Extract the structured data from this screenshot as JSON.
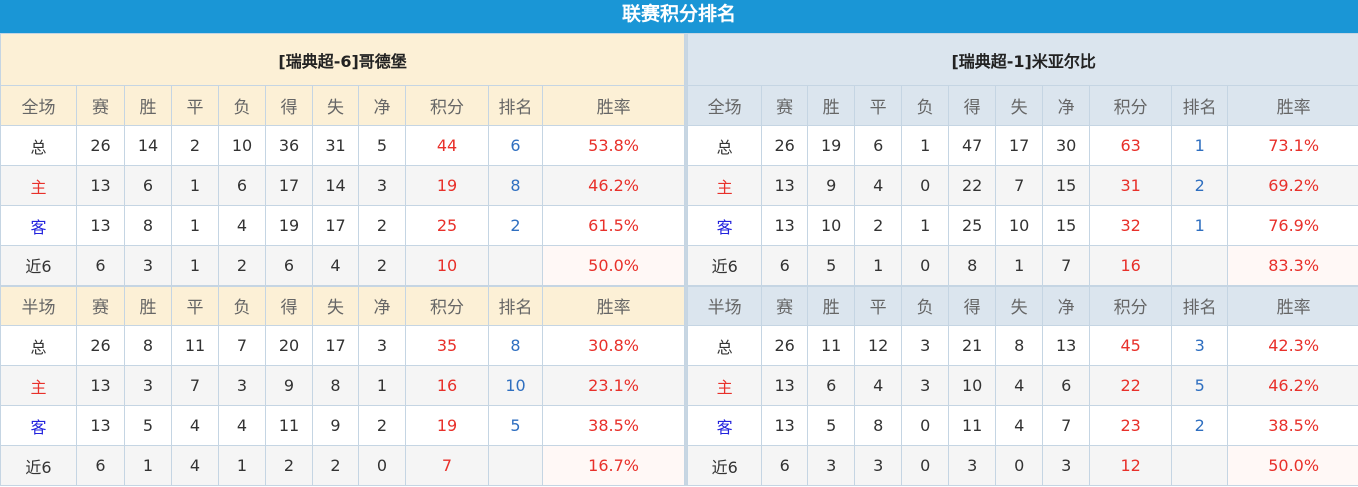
{
  "title": "联赛积分排名",
  "headers_full": [
    "全场",
    "赛",
    "胜",
    "平",
    "负",
    "得",
    "失",
    "净",
    "积分",
    "排名",
    "胜率"
  ],
  "headers_half": [
    "半场",
    "赛",
    "胜",
    "平",
    "负",
    "得",
    "失",
    "净",
    "积分",
    "排名",
    "胜率"
  ],
  "colors": {
    "title_bg": "#1a96d6",
    "points": "#e8302a",
    "rank": "#2f6fc0",
    "home": "#e8302a",
    "away": "#2222dd"
  },
  "teams": [
    {
      "name": "[瑞典超-6]哥德堡",
      "full": [
        [
          "总",
          "26",
          "14",
          "2",
          "10",
          "36",
          "31",
          "5",
          "44",
          "6",
          "53.8%"
        ],
        [
          "主",
          "13",
          "6",
          "1",
          "6",
          "17",
          "14",
          "3",
          "19",
          "8",
          "46.2%"
        ],
        [
          "客",
          "13",
          "8",
          "1",
          "4",
          "19",
          "17",
          "2",
          "25",
          "2",
          "61.5%"
        ],
        [
          "近6",
          "6",
          "3",
          "1",
          "2",
          "6",
          "4",
          "2",
          "10",
          "",
          "50.0%"
        ]
      ],
      "half": [
        [
          "总",
          "26",
          "8",
          "11",
          "7",
          "20",
          "17",
          "3",
          "35",
          "8",
          "30.8%"
        ],
        [
          "主",
          "13",
          "3",
          "7",
          "3",
          "9",
          "8",
          "1",
          "16",
          "10",
          "23.1%"
        ],
        [
          "客",
          "13",
          "5",
          "4",
          "4",
          "11",
          "9",
          "2",
          "19",
          "5",
          "38.5%"
        ],
        [
          "近6",
          "6",
          "1",
          "4",
          "1",
          "2",
          "2",
          "0",
          "7",
          "",
          "16.7%"
        ]
      ]
    },
    {
      "name": "[瑞典超-1]米亚尔比",
      "full": [
        [
          "总",
          "26",
          "19",
          "6",
          "1",
          "47",
          "17",
          "30",
          "63",
          "1",
          "73.1%"
        ],
        [
          "主",
          "13",
          "9",
          "4",
          "0",
          "22",
          "7",
          "15",
          "31",
          "2",
          "69.2%"
        ],
        [
          "客",
          "13",
          "10",
          "2",
          "1",
          "25",
          "10",
          "15",
          "32",
          "1",
          "76.9%"
        ],
        [
          "近6",
          "6",
          "5",
          "1",
          "0",
          "8",
          "1",
          "7",
          "16",
          "",
          "83.3%"
        ]
      ],
      "half": [
        [
          "总",
          "26",
          "11",
          "12",
          "3",
          "21",
          "8",
          "13",
          "45",
          "3",
          "42.3%"
        ],
        [
          "主",
          "13",
          "6",
          "4",
          "3",
          "10",
          "4",
          "6",
          "22",
          "5",
          "46.2%"
        ],
        [
          "客",
          "13",
          "5",
          "8",
          "0",
          "11",
          "4",
          "7",
          "23",
          "2",
          "38.5%"
        ],
        [
          "近6",
          "6",
          "3",
          "3",
          "0",
          "3",
          "0",
          "3",
          "12",
          "",
          "50.0%"
        ]
      ]
    }
  ]
}
